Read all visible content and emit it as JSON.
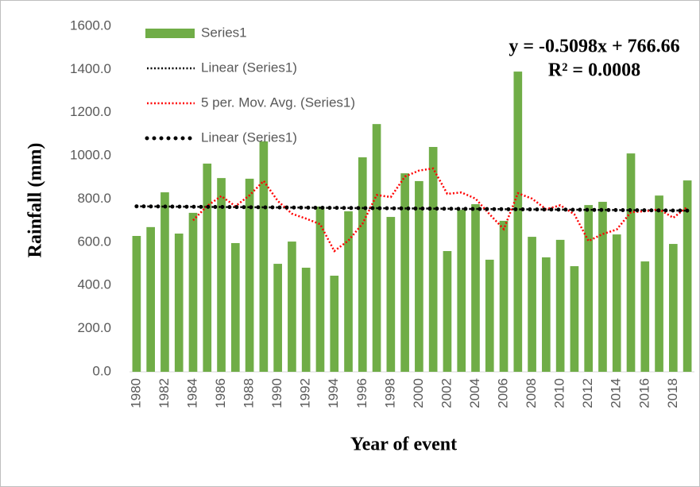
{
  "chart_data": {
    "type": "bar",
    "y_axis_label": "Rainfall (mm)",
    "x_axis_label": "Year of event",
    "annotations": [
      "y = -0.5098x + 766.66",
      "R² = 0.0008"
    ],
    "categories": [
      "1980",
      null,
      "1982",
      null,
      "1984",
      null,
      "1986",
      null,
      "1988",
      null,
      "1990",
      null,
      "1992",
      null,
      "1994",
      null,
      "1996",
      null,
      "1998",
      null,
      "2000",
      null,
      "2002",
      null,
      "2004",
      null,
      "2006",
      null,
      "2008",
      null,
      "2010",
      null,
      "2012",
      null,
      "2014",
      null,
      "2016",
      null,
      "2018",
      null
    ],
    "ylim": [
      0,
      1600
    ],
    "yticks": [
      {
        "value": 0,
        "label": "0.0"
      },
      {
        "value": 200,
        "label": "200.0"
      },
      {
        "value": 400,
        "label": "400.0"
      },
      {
        "value": 600,
        "label": "600.0"
      },
      {
        "value": 800,
        "label": "800.0"
      },
      {
        "value": 1000,
        "label": "1000.0"
      },
      {
        "value": 1200,
        "label": "1200.0"
      },
      {
        "value": 1400,
        "label": "1400.0"
      },
      {
        "value": 1600,
        "label": "1600.0"
      }
    ],
    "grid": false,
    "legend": "top-left",
    "series": [
      {
        "name": "Series1",
        "type": "bar",
        "color": "#70ad47",
        "values": [
          629,
          670,
          831,
          640,
          736,
          964,
          897,
          596,
          894,
          1067,
          500,
          603,
          482,
          765,
          445,
          743,
          993,
          1147,
          717,
          919,
          883,
          1041,
          559,
          750,
          776,
          519,
          699,
          1390,
          625,
          530,
          611,
          489,
          772,
          787,
          636,
          1011,
          511,
          816,
          592,
          886
        ]
      },
      {
        "name": "Linear (Series1)",
        "type": "line",
        "line_style": "fine-dot",
        "color": "#000000",
        "values": [
          766.15,
          765.64,
          765.13,
          764.62,
          764.11,
          763.6,
          763.09,
          762.58,
          762.07,
          761.56,
          761.05,
          760.54,
          760.03,
          759.52,
          759.01,
          758.5,
          757.99,
          757.48,
          756.97,
          756.46,
          755.95,
          755.44,
          754.93,
          754.42,
          753.91,
          753.41,
          752.9,
          752.39,
          751.88,
          751.37,
          750.86,
          750.35,
          749.84,
          749.33,
          748.82,
          748.31,
          747.8,
          747.29,
          746.78,
          746.27
        ]
      },
      {
        "name": "5 per. Mov. Avg. (Series1)",
        "type": "line",
        "line_style": "fine-dot",
        "color": "#ff0000",
        "values": [
          null,
          null,
          null,
          null,
          701.2,
          768.2,
          813.6,
          766.6,
          817.4,
          883.6,
          790.8,
          732,
          709.2,
          683.4,
          559,
          607.6,
          685.6,
          818.6,
          809,
          903.8,
          931.8,
          941.4,
          823.8,
          830.4,
          801.8,
          729,
          660.6,
          826.8,
          801.8,
          752.6,
          771,
          729,
          605.4,
          637.8,
          659,
          739,
          743.4,
          752.2,
          713.2,
          763.2
        ]
      },
      {
        "name": "Linear (Series1)",
        "type": "line",
        "line_style": "round-dot",
        "color": "#000000",
        "values": [
          766.15,
          765.64,
          765.13,
          764.62,
          764.11,
          763.6,
          763.09,
          762.58,
          762.07,
          761.56,
          761.05,
          760.54,
          760.03,
          759.52,
          759.01,
          758.5,
          757.99,
          757.48,
          756.97,
          756.46,
          755.95,
          755.44,
          754.93,
          754.42,
          753.91,
          753.41,
          752.9,
          752.39,
          751.88,
          751.37,
          750.86,
          750.35,
          749.84,
          749.33,
          748.82,
          748.31,
          747.8,
          747.29,
          746.78,
          746.27
        ]
      }
    ]
  }
}
